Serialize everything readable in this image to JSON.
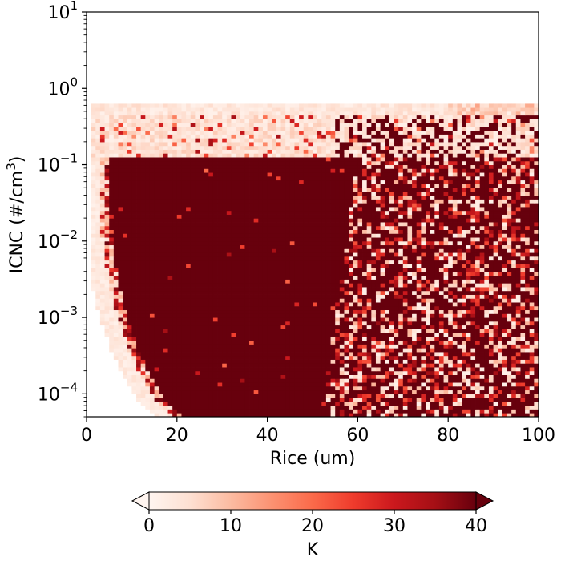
{
  "chart_data": {
    "type": "heatmap",
    "xlabel": "Rice (um)",
    "ylabel_parts": {
      "prefix": "ICNC (#/cm",
      "sup": "3",
      "suffix": ")"
    },
    "x_ticks": [
      {
        "value": 0,
        "label": "0"
      },
      {
        "value": 20,
        "label": "20"
      },
      {
        "value": 40,
        "label": "40"
      },
      {
        "value": 60,
        "label": "60"
      },
      {
        "value": 80,
        "label": "80"
      },
      {
        "value": 100,
        "label": "100"
      }
    ],
    "y_ticks": [
      {
        "value": 0.0001,
        "base": "10",
        "exp": "−4"
      },
      {
        "value": 0.001,
        "base": "10",
        "exp": "−3"
      },
      {
        "value": 0.01,
        "base": "10",
        "exp": "−2"
      },
      {
        "value": 0.1,
        "base": "10",
        "exp": "−1"
      },
      {
        "value": 1,
        "base": "10",
        "exp": "0"
      },
      {
        "value": 10,
        "base": "10",
        "exp": "1"
      }
    ],
    "xlim": [
      0,
      100
    ],
    "ylim": [
      5e-05,
      10
    ],
    "y_scale": "log",
    "grid": false,
    "colorbar": {
      "label": "K",
      "range": [
        0,
        40
      ],
      "extend": "both",
      "orientation": "horizontal",
      "placement": "bottom",
      "colormap": "Reds",
      "ticks": [
        {
          "value": 0,
          "label": "0"
        },
        {
          "value": 10,
          "label": "10"
        },
        {
          "value": 20,
          "label": "20"
        },
        {
          "value": 30,
          "label": "30"
        },
        {
          "value": 40,
          "label": "40"
        }
      ]
    },
    "regions": {
      "saturated_core": {
        "value": 40,
        "x_range": [
          5,
          57
        ],
        "y_range": [
          5e-05,
          0.12
        ]
      },
      "low_value_band": {
        "value_range": [
          0,
          10
        ],
        "x_range": [
          1,
          100
        ],
        "y_range": [
          0.12,
          0.6
        ]
      },
      "mixed_noisy_region": {
        "value_range": [
          0,
          40
        ],
        "x_range": [
          57,
          100
        ],
        "y_range": [
          5e-05,
          0.45
        ]
      },
      "empty_above": {
        "y_range": [
          0.6,
          10
        ]
      }
    }
  }
}
